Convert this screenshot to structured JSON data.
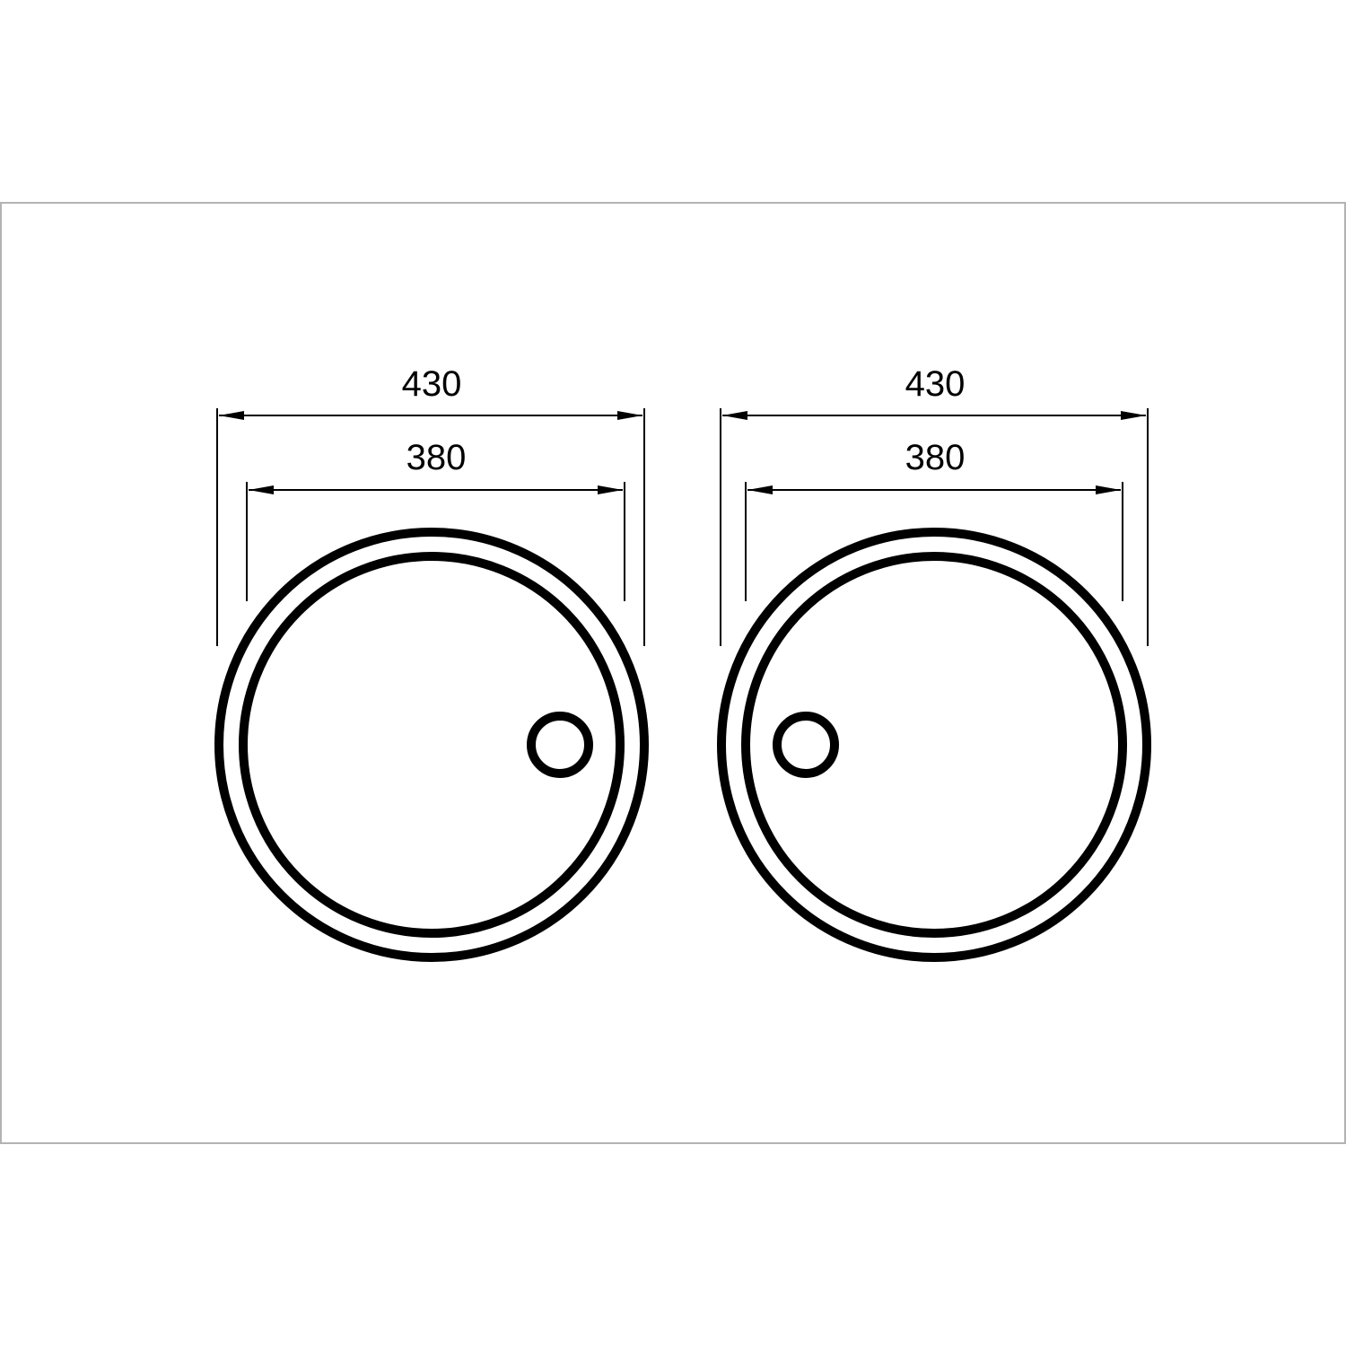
{
  "sinks": [
    {
      "id": "left",
      "outer_dimension_label": "430",
      "inner_dimension_label": "380",
      "drain_side": "right"
    },
    {
      "id": "right",
      "outer_dimension_label": "430",
      "inner_dimension_label": "380",
      "drain_side": "left"
    }
  ],
  "colors": {
    "line": "#000000",
    "frame": "#b3b3b3",
    "background": "#ffffff"
  }
}
